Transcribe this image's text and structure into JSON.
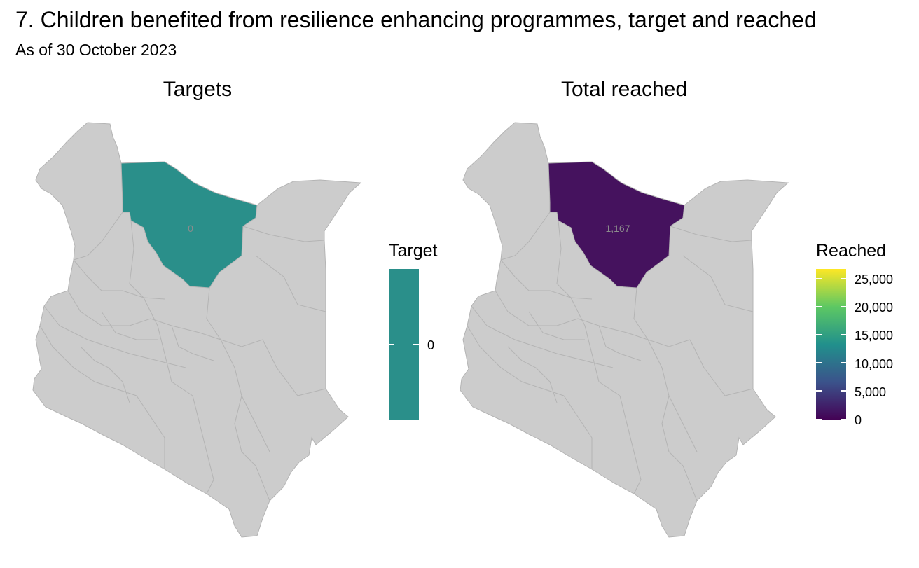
{
  "title": "7. Children benefited from resilience enhancing programmes, target and reached",
  "subtitle": "As of 30 October 2023",
  "panels": {
    "targets": {
      "title": "Targets",
      "highlighted_value_label": "0",
      "fill_color": "#2A8F8A",
      "legend": {
        "title": "Target",
        "ticks": [
          "0"
        ],
        "color": "#2A8F8A"
      }
    },
    "reached": {
      "title": "Total reached",
      "highlighted_value_label": "1,167",
      "fill_color": "#45125E",
      "legend": {
        "title": "Reached",
        "ticks": [
          "25,000",
          "20,000",
          "15,000",
          "10,000",
          "5,000",
          "0"
        ],
        "gradient": [
          "#440154",
          "#3B528B",
          "#21908C",
          "#5DC863",
          "#FDE725"
        ]
      }
    }
  },
  "map_colors": {
    "base_fill": "#CCCCCC",
    "border": "#B4B4B4",
    "label_color": "#8C8C8C"
  },
  "chart_data": [
    {
      "type": "choropleth",
      "title": "Targets",
      "legend_title": "Target",
      "regions": [
        {
          "name": "",
          "value": 0,
          "label": "0"
        }
      ],
      "scale_range": [
        0,
        0
      ]
    },
    {
      "type": "choropleth",
      "title": "Total reached",
      "legend_title": "Reached",
      "regions": [
        {
          "name": "",
          "value": 1167,
          "label": "1,167"
        }
      ],
      "scale_range": [
        0,
        27000
      ]
    }
  ]
}
